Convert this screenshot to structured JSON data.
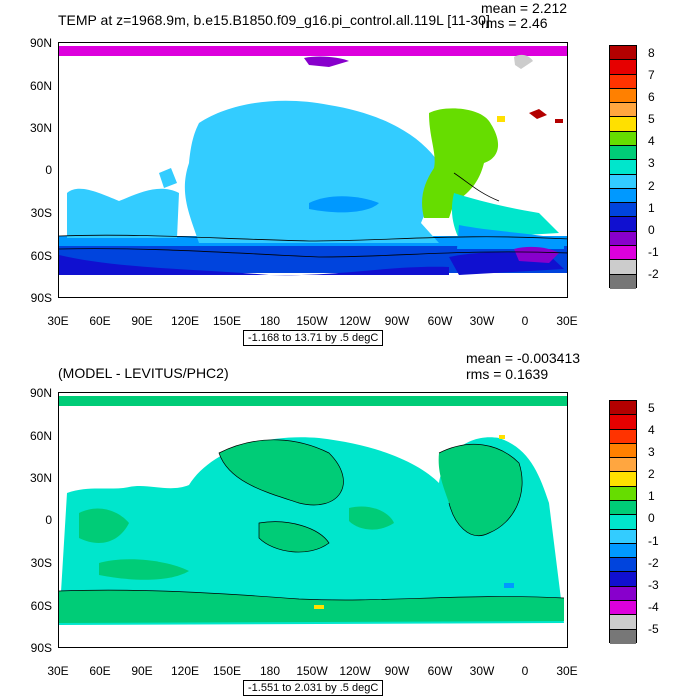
{
  "top": {
    "title": "TEMP at z=1968.9m, b.e15.B1850.f09_g16.pi_control.all.119L [11-30]",
    "mean": "mean = 2.212",
    "rms": "rms = 2.46",
    "range_label": "-1.168 to 13.71 by .5 degC",
    "colorbar_labels": [
      "8",
      "7",
      "6",
      "5",
      "4",
      "3",
      "2",
      "1",
      "0",
      "-1",
      "-2"
    ],
    "colorbar_colors": [
      "#b30000",
      "#e60000",
      "#ff3300",
      "#ff8000",
      "#ffa640",
      "#ffe000",
      "#66dd00",
      "#00cc77",
      "#00e6cc",
      "#33ccff",
      "#0099ff",
      "#0044dd",
      "#1010d0",
      "#8800cc",
      "#dd00dd",
      "#cccccc",
      "#777777"
    ]
  },
  "bottom": {
    "title": "(MODEL - LEVITUS/PHC2)",
    "mean": "mean = -0.003413",
    "rms": "rms = 0.1639",
    "range_label": "-1.551 to 2.031 by .5 degC",
    "colorbar_labels": [
      "5",
      "4",
      "3",
      "2",
      "1",
      "0",
      "-1",
      "-2",
      "-3",
      "-4",
      "-5"
    ],
    "colorbar_colors": [
      "#b30000",
      "#e60000",
      "#ff3300",
      "#ff8000",
      "#ffa640",
      "#ffe000",
      "#66dd00",
      "#00cc77",
      "#00e6cc",
      "#33ccff",
      "#0099ff",
      "#0044dd",
      "#1010d0",
      "#8800cc",
      "#dd00dd",
      "#cccccc",
      "#777777"
    ]
  },
  "axes": {
    "lat_labels": [
      "90N",
      "60N",
      "30N",
      "0",
      "30S",
      "60S",
      "90S"
    ],
    "lon_labels": [
      "30E",
      "60E",
      "90E",
      "120E",
      "150E",
      "180",
      "150W",
      "120W",
      "90W",
      "60W",
      "30W",
      "0",
      "30E"
    ]
  }
}
